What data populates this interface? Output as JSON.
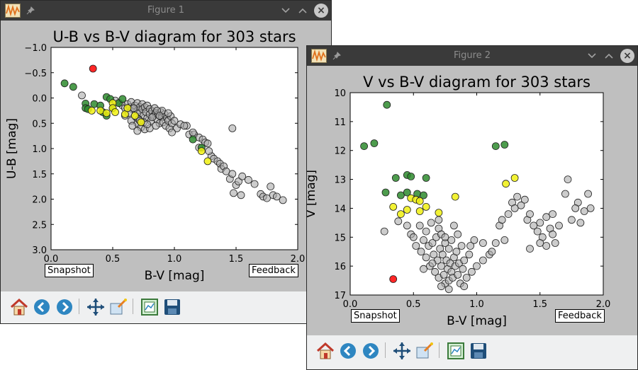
{
  "windows": [
    {
      "title": "Figure 1",
      "snapshot_label": "Snapshot",
      "feedback_label": "Feedback"
    },
    {
      "title": "Figure 2",
      "snapshot_label": "Snapshot",
      "feedback_label": "Feedback"
    }
  ],
  "toolbar_icons": [
    "home-icon",
    "back-icon",
    "forward-icon",
    "pan-icon",
    "zoom-icon",
    "configure-subplots-icon",
    "save-icon"
  ],
  "colors": {
    "grey": "#aaaaaa",
    "green": "#2e8b2e",
    "yellow": "#f0f010",
    "red": "#ff0000",
    "titlebar": "#3a3a3a",
    "figure_bg": "#bfbfbf"
  },
  "chart_data": [
    {
      "type": "scatter",
      "title": "U-B vs B-V diagram for 303 stars",
      "xlabel": "B-V [mag]",
      "ylabel": "U-B [mag]",
      "xlim": [
        0.0,
        2.0
      ],
      "ylim": [
        3.0,
        -1.0
      ],
      "y_inverted": true,
      "xticks": [
        "0.0",
        "0.5",
        "1.0",
        "1.5",
        "2.0"
      ],
      "yticks": [
        "−1.0",
        "−0.5",
        "0.0",
        "0.5",
        "1.0",
        "1.5",
        "2.0",
        "2.5",
        "3.0"
      ],
      "series": [
        {
          "color": "grey",
          "points": [
            [
              0.25,
              -0.05
            ],
            [
              0.52,
              0.05
            ],
            [
              0.55,
              0.1
            ],
            [
              0.58,
              0.15
            ],
            [
              0.6,
              0.2
            ],
            [
              0.62,
              0.12
            ],
            [
              0.64,
              0.18
            ],
            [
              0.65,
              0.08
            ],
            [
              0.66,
              0.22
            ],
            [
              0.68,
              0.15
            ],
            [
              0.7,
              0.1
            ],
            [
              0.7,
              0.25
            ],
            [
              0.72,
              0.18
            ],
            [
              0.72,
              0.3
            ],
            [
              0.74,
              0.12
            ],
            [
              0.74,
              0.22
            ],
            [
              0.75,
              0.35
            ],
            [
              0.76,
              0.18
            ],
            [
              0.77,
              0.28
            ],
            [
              0.78,
              0.15
            ],
            [
              0.78,
              0.4
            ],
            [
              0.8,
              0.22
            ],
            [
              0.8,
              0.32
            ],
            [
              0.81,
              0.45
            ],
            [
              0.82,
              0.26
            ],
            [
              0.83,
              0.36
            ],
            [
              0.84,
              0.2
            ],
            [
              0.85,
              0.3
            ],
            [
              0.86,
              0.42
            ],
            [
              0.87,
              0.33
            ],
            [
              0.88,
              0.5
            ],
            [
              0.89,
              0.28
            ],
            [
              0.9,
              0.38
            ],
            [
              0.91,
              0.48
            ],
            [
              0.92,
              0.32
            ],
            [
              0.93,
              0.55
            ],
            [
              0.94,
              0.4
            ],
            [
              0.95,
              0.45
            ],
            [
              0.96,
              0.6
            ],
            [
              0.97,
              0.36
            ],
            [
              0.98,
              0.5
            ],
            [
              0.6,
              0.35
            ],
            [
              0.65,
              0.45
            ],
            [
              0.7,
              0.5
            ],
            [
              0.73,
              0.58
            ],
            [
              0.76,
              0.62
            ],
            [
              0.8,
              0.6
            ],
            [
              0.82,
              0.38
            ],
            [
              0.85,
              0.55
            ],
            [
              0.63,
              0.3
            ],
            [
              0.67,
              0.2
            ],
            [
              0.69,
              0.38
            ],
            [
              0.71,
              0.42
            ],
            [
              0.9,
              0.25
            ],
            [
              0.95,
              0.3
            ],
            [
              1.0,
              0.45
            ],
            [
              1.02,
              0.6
            ],
            [
              1.05,
              0.52
            ],
            [
              1.1,
              0.55
            ],
            [
              1.12,
              0.72
            ],
            [
              1.16,
              0.72
            ],
            [
              1.2,
              0.78
            ],
            [
              1.23,
              0.82
            ],
            [
              1.25,
              0.88
            ],
            [
              1.27,
              0.9
            ],
            [
              1.3,
              1.15
            ],
            [
              1.32,
              1.2
            ],
            [
              1.35,
              1.25
            ],
            [
              1.37,
              1.3
            ],
            [
              1.38,
              1.4
            ],
            [
              1.4,
              1.35
            ],
            [
              1.42,
              1.45
            ],
            [
              1.45,
              1.6
            ],
            [
              1.47,
              1.5
            ],
            [
              1.5,
              1.72
            ],
            [
              1.52,
              1.65
            ],
            [
              1.48,
              1.88
            ],
            [
              1.54,
              1.92
            ],
            [
              1.55,
              1.55
            ],
            [
              1.6,
              1.62
            ],
            [
              1.65,
              1.7
            ],
            [
              1.7,
              1.9
            ],
            [
              1.72,
              1.95
            ],
            [
              1.75,
              1.98
            ],
            [
              1.78,
              1.75
            ],
            [
              1.8,
              1.92
            ],
            [
              1.83,
              1.95
            ],
            [
              1.88,
              2.02
            ],
            [
              1.47,
              0.6
            ],
            [
              1.28,
              1.05
            ],
            [
              1.2,
              0.98
            ],
            [
              1.15,
              0.68
            ],
            [
              0.98,
              0.68
            ],
            [
              1.08,
              0.55
            ],
            [
              0.7,
              0.65
            ],
            [
              0.66,
              0.55
            ],
            [
              0.75,
              0.48
            ],
            [
              0.78,
              0.52
            ],
            [
              0.72,
              0.45
            ],
            [
              0.86,
              0.25
            ],
            [
              0.88,
              0.35
            ]
          ]
        },
        {
          "color": "green",
          "points": [
            [
              0.11,
              -0.29
            ],
            [
              0.18,
              -0.22
            ],
            [
              0.28,
              0.11
            ],
            [
              0.28,
              0.2
            ],
            [
              0.3,
              0.22
            ],
            [
              0.35,
              0.12
            ],
            [
              0.4,
              0.15
            ],
            [
              0.45,
              -0.02
            ],
            [
              0.48,
              0.02
            ],
            [
              0.5,
              0.2
            ],
            [
              0.55,
              0.1
            ],
            [
              0.58,
              0.02
            ],
            [
              0.45,
              0.35
            ],
            [
              0.42,
              0.28
            ],
            [
              1.15,
              0.82
            ],
            [
              1.22,
              0.98
            ]
          ]
        },
        {
          "color": "yellow",
          "points": [
            [
              0.33,
              0.25
            ],
            [
              0.4,
              0.25
            ],
            [
              0.45,
              0.3
            ],
            [
              0.5,
              0.1
            ],
            [
              0.5,
              0.2
            ],
            [
              0.52,
              0.28
            ],
            [
              0.6,
              0.32
            ],
            [
              0.62,
              0.2
            ],
            [
              0.68,
              0.35
            ],
            [
              0.73,
              0.48
            ],
            [
              1.22,
              1.05
            ],
            [
              1.27,
              1.25
            ]
          ]
        },
        {
          "color": "red",
          "points": [
            [
              0.34,
              -0.58
            ]
          ]
        }
      ]
    },
    {
      "type": "scatter",
      "title": "V vs B-V diagram for 303 stars",
      "xlabel": "B-V [mag]",
      "ylabel": "V [mag]",
      "xlim": [
        0.0,
        2.0
      ],
      "ylim": [
        17,
        10
      ],
      "y_inverted": true,
      "xticks": [
        "0.0",
        "0.5",
        "1.0",
        "1.5",
        "2.0"
      ],
      "yticks": [
        "10",
        "11",
        "12",
        "13",
        "14",
        "15",
        "16",
        "17"
      ],
      "series": [
        {
          "color": "grey",
          "points": [
            [
              0.27,
              14.8
            ],
            [
              0.38,
              14.45
            ],
            [
              0.45,
              14.6
            ],
            [
              0.48,
              14.9
            ],
            [
              0.5,
              15.0
            ],
            [
              0.52,
              15.3
            ],
            [
              0.55,
              14.6
            ],
            [
              0.56,
              15.5
            ],
            [
              0.58,
              15.1
            ],
            [
              0.6,
              14.8
            ],
            [
              0.6,
              15.7
            ],
            [
              0.62,
              15.3
            ],
            [
              0.63,
              16.0
            ],
            [
              0.64,
              14.5
            ],
            [
              0.65,
              15.2
            ],
            [
              0.66,
              15.6
            ],
            [
              0.67,
              16.2
            ],
            [
              0.68,
              15.0
            ],
            [
              0.69,
              15.8
            ],
            [
              0.7,
              14.7
            ],
            [
              0.7,
              16.4
            ],
            [
              0.71,
              15.4
            ],
            [
              0.72,
              16.0
            ],
            [
              0.72,
              14.9
            ],
            [
              0.73,
              15.6
            ],
            [
              0.74,
              16.3
            ],
            [
              0.75,
              15.2
            ],
            [
              0.75,
              16.6
            ],
            [
              0.76,
              15.8
            ],
            [
              0.77,
              16.1
            ],
            [
              0.78,
              15.4
            ],
            [
              0.78,
              16.5
            ],
            [
              0.79,
              15.9
            ],
            [
              0.8,
              16.2
            ],
            [
              0.8,
              15.1
            ],
            [
              0.81,
              16.4
            ],
            [
              0.82,
              15.7
            ],
            [
              0.83,
              16.0
            ],
            [
              0.84,
              15.5
            ],
            [
              0.85,
              16.3
            ],
            [
              0.86,
              15.9
            ],
            [
              0.87,
              16.6
            ],
            [
              0.88,
              15.3
            ],
            [
              0.89,
              16.1
            ],
            [
              0.9,
              15.8
            ],
            [
              0.92,
              16.4
            ],
            [
              0.94,
              15.6
            ],
            [
              0.96,
              16.2
            ],
            [
              0.98,
              15.1
            ],
            [
              1.0,
              16.0
            ],
            [
              1.05,
              15.8
            ],
            [
              1.1,
              15.6
            ],
            [
              1.15,
              15.2
            ],
            [
              1.18,
              14.6
            ],
            [
              1.2,
              14.4
            ],
            [
              1.22,
              15.1
            ],
            [
              1.25,
              14.2
            ],
            [
              1.28,
              13.8
            ],
            [
              1.3,
              14.0
            ],
            [
              1.32,
              13.6
            ],
            [
              1.35,
              13.9
            ],
            [
              1.38,
              13.7
            ],
            [
              1.4,
              14.4
            ],
            [
              1.42,
              14.2
            ],
            [
              1.45,
              14.6
            ],
            [
              1.48,
              14.8
            ],
            [
              1.5,
              14.5
            ],
            [
              1.52,
              15.0
            ],
            [
              1.55,
              14.3
            ],
            [
              1.58,
              14.7
            ],
            [
              1.6,
              14.2
            ],
            [
              1.62,
              15.2
            ],
            [
              1.65,
              14.6
            ],
            [
              1.7,
              13.5
            ],
            [
              1.72,
              13.0
            ],
            [
              1.75,
              14.4
            ],
            [
              1.8,
              13.8
            ],
            [
              1.85,
              14.1
            ],
            [
              1.88,
              13.5
            ],
            [
              1.9,
              14.0
            ],
            [
              0.7,
              14.4
            ],
            [
              0.82,
              14.6
            ],
            [
              0.65,
              15.9
            ],
            [
              0.58,
              16.1
            ],
            [
              0.75,
              15.0
            ],
            [
              0.85,
              14.9
            ],
            [
              0.9,
              16.7
            ],
            [
              0.78,
              16.8
            ],
            [
              0.72,
              16.7
            ],
            [
              0.95,
              15.3
            ],
            [
              1.05,
              15.2
            ],
            [
              1.12,
              15.5
            ],
            [
              1.42,
              15.4
            ],
            [
              1.5,
              15.2
            ],
            [
              1.55,
              15.3
            ],
            [
              1.78,
              14.0
            ],
            [
              1.82,
              14.5
            ],
            [
              1.6,
              14.9
            ]
          ]
        },
        {
          "color": "green",
          "points": [
            [
              0.11,
              11.85
            ],
            [
              0.19,
              11.75
            ],
            [
              0.29,
              10.42
            ],
            [
              0.28,
              13.45
            ],
            [
              0.36,
              12.95
            ],
            [
              0.45,
              12.85
            ],
            [
              0.48,
              12.9
            ],
            [
              0.4,
              13.55
            ],
            [
              0.45,
              13.45
            ],
            [
              0.53,
              13.5
            ],
            [
              0.58,
              13.55
            ],
            [
              0.6,
              12.95
            ],
            [
              1.15,
              11.85
            ],
            [
              1.22,
              11.8
            ]
          ]
        },
        {
          "color": "yellow",
          "points": [
            [
              0.34,
              13.95
            ],
            [
              0.4,
              14.2
            ],
            [
              0.45,
              14.05
            ],
            [
              0.48,
              13.65
            ],
            [
              0.52,
              13.7
            ],
            [
              0.55,
              13.75
            ],
            [
              0.55,
              14.1
            ],
            [
              0.6,
              13.95
            ],
            [
              0.7,
              14.15
            ],
            [
              0.83,
              13.6
            ],
            [
              1.23,
              13.15
            ],
            [
              1.3,
              12.95
            ]
          ]
        },
        {
          "color": "red",
          "points": [
            [
              0.34,
              16.45
            ]
          ]
        }
      ]
    }
  ]
}
